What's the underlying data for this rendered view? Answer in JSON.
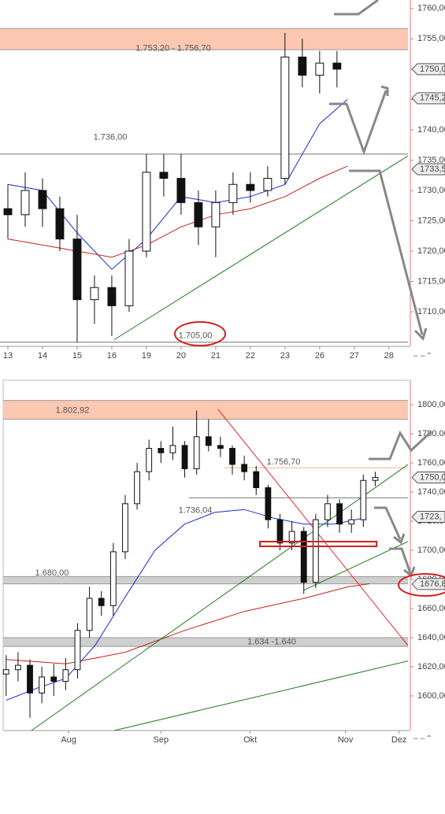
{
  "chart_data": [
    {
      "type": "candlestick",
      "x": [
        0,
        0.5,
        1,
        1.5,
        2,
        2.5,
        3,
        3.5,
        4,
        4.5,
        5,
        5.5,
        6,
        6.5,
        7,
        7.5,
        8,
        8.5,
        9,
        9.5
      ],
      "open": [
        1727,
        1726,
        1730,
        1727,
        1722,
        1712,
        1714,
        1711,
        1720,
        1733,
        1732,
        1728,
        1724,
        1728,
        1731,
        1730,
        1732,
        1752,
        1749,
        1751
      ],
      "high": [
        1731,
        1733,
        1732,
        1729,
        1726,
        1716,
        1716,
        1722,
        1736,
        1736,
        1736,
        1730,
        1730,
        1733,
        1733,
        1734,
        1756,
        1755,
        1753,
        1753
      ],
      "low": [
        1722,
        1724,
        1724,
        1720,
        1705,
        1708,
        1706,
        1710,
        1719,
        1729,
        1726,
        1721,
        1719,
        1726,
        1728,
        1729,
        1731,
        1747,
        1746,
        1747
      ],
      "close": [
        1726,
        1730,
        1727,
        1722,
        1712,
        1714,
        1711,
        1720,
        1733,
        1732,
        1728,
        1724,
        1728,
        1731,
        1730,
        1732,
        1752,
        1749,
        1751,
        1750
      ],
      "lines": [
        {
          "color": "#1a2bd6",
          "x": [
            0,
            1,
            2,
            3,
            4,
            5,
            6,
            7,
            8,
            9,
            9.8
          ],
          "values": [
            1731,
            1730,
            1723,
            1717,
            1722,
            1729,
            1728,
            1729,
            1731,
            1741,
            1745
          ]
        },
        {
          "color": "#c8201c",
          "x": [
            0,
            1,
            2,
            3,
            4,
            5,
            6,
            7,
            8,
            9,
            9.8
          ],
          "values": [
            1722,
            1721,
            1720,
            1719,
            1721,
            1724,
            1726,
            1727,
            1729,
            1732,
            1734
          ]
        },
        {
          "color": "#1f7a1f",
          "x": [
            3.07,
            11.55
          ],
          "values": [
            1705.4,
            1735.7
          ]
        }
      ],
      "bands": [
        {
          "range": [
            1753.2,
            1756.7
          ],
          "label": "1.753,20 - 1.756,70",
          "color": "#fcc8b2"
        }
      ],
      "levels": [
        {
          "value": 1736,
          "label": "1.736,00"
        },
        {
          "value": 1705,
          "label": "1.705,00"
        }
      ],
      "price_tags": [
        {
          "value": 1750,
          "label": "1750,0"
        },
        {
          "value": 1745.2,
          "label": "1745,2"
        },
        {
          "value": 1733.5,
          "label": "1733,5"
        }
      ],
      "xlim": [
        -0.227,
        11.55
      ],
      "xticks": [
        {
          "value": 0,
          "label": "13"
        },
        {
          "value": 1,
          "label": "14"
        },
        {
          "value": 2,
          "label": "15"
        },
        {
          "value": 3,
          "label": "16"
        },
        {
          "value": 4,
          "label": "19"
        },
        {
          "value": 5,
          "label": "20"
        },
        {
          "value": 6,
          "label": "21"
        },
        {
          "value": 7,
          "label": "22"
        },
        {
          "value": 8,
          "label": "23"
        },
        {
          "value": 9,
          "label": "26"
        },
        {
          "value": 10,
          "label": "27"
        },
        {
          "value": 11,
          "label": "28"
        }
      ],
      "ylim": [
        1704.3,
        1761.4
      ],
      "yticks": [
        {
          "value": 1760,
          "label": "1760,00"
        },
        {
          "value": 1755,
          "label": "1755,00"
        },
        {
          "value": 1750,
          "label": "1750,00"
        },
        {
          "value": 1745,
          "label": "1745,00"
        },
        {
          "value": 1740,
          "label": "1740,00"
        },
        {
          "value": 1735,
          "label": "1735,00"
        },
        {
          "value": 1730,
          "label": "1730,00"
        },
        {
          "value": 1725,
          "label": "1725,00"
        },
        {
          "value": 1720,
          "label": "1720,00"
        },
        {
          "value": 1715,
          "label": "1715,00"
        },
        {
          "value": 1710,
          "label": "1710,00"
        }
      ]
    },
    {
      "type": "candlestick",
      "x": [
        10,
        14,
        18,
        22,
        26,
        30,
        34,
        38,
        42,
        46,
        50,
        54,
        58,
        62,
        66,
        70,
        74,
        78,
        82,
        86,
        90,
        94,
        98,
        102,
        106,
        110,
        114,
        118,
        122,
        126,
        130,
        134
      ],
      "open": [
        1615,
        1618,
        1621,
        1602,
        1613,
        1610,
        1618,
        1645,
        1667,
        1662,
        1699,
        1732,
        1754,
        1770,
        1767,
        1772,
        1756,
        1778,
        1772,
        1770,
        1759,
        1754,
        1743,
        1721,
        1705,
        1713,
        1678,
        1721,
        1732,
        1718,
        1721,
        1748
      ],
      "high": [
        1628,
        1630,
        1625,
        1620,
        1622,
        1626,
        1650,
        1675,
        1672,
        1705,
        1738,
        1760,
        1776,
        1775,
        1785,
        1775,
        1796,
        1790,
        1778,
        1772,
        1765,
        1758,
        1745,
        1725,
        1720,
        1716,
        1725,
        1738,
        1735,
        1728,
        1752,
        1754
      ],
      "low": [
        1600,
        1610,
        1585,
        1595,
        1600,
        1604,
        1612,
        1640,
        1655,
        1655,
        1694,
        1728,
        1748,
        1760,
        1762,
        1750,
        1752,
        1768,
        1764,
        1752,
        1748,
        1738,
        1715,
        1700,
        1700,
        1670,
        1674,
        1716,
        1712,
        1712,
        1716,
        1744
      ],
      "close": [
        1618,
        1621,
        1602,
        1613,
        1610,
        1618,
        1645,
        1667,
        1662,
        1699,
        1732,
        1754,
        1770,
        1767,
        1772,
        1756,
        1778,
        1772,
        1770,
        1759,
        1754,
        1743,
        1721,
        1705,
        1713,
        1678,
        1721,
        1732,
        1718,
        1721,
        1748,
        1750
      ],
      "lines": [
        {
          "color": "#1a2bd6",
          "x": [
            10,
            20,
            30,
            40,
            50,
            60,
            70,
            80,
            90,
            100,
            110,
            120,
            130
          ],
          "values": [
            1597,
            1605,
            1612,
            1635,
            1668,
            1700,
            1718,
            1726,
            1728,
            1722,
            1718,
            1718,
            1722
          ]
        },
        {
          "color": "#c8201c",
          "x": [
            10,
            30,
            50,
            70,
            90,
            110,
            125,
            132
          ],
          "values": [
            1625,
            1622,
            1630,
            1645,
            1658,
            1667,
            1675,
            1677
          ]
        },
        {
          "color": "#1f7a1f",
          "x": [
            18.5,
            145
          ],
          "values": [
            1576.2,
            1758.9
          ]
        },
        {
          "color": "#1f7a1f",
          "x": [
            46.3,
            145
          ],
          "values": [
            1576.2,
            1624
          ]
        },
        {
          "color": "#1f7a1f",
          "x": [
            109.8,
            145
          ],
          "values": [
            1672.4,
            1706
          ]
        },
        {
          "color": "#e03030",
          "x": [
            81.2,
            145
          ],
          "values": [
            1796.8,
            1634.6
          ]
        }
      ],
      "bands": [
        {
          "range": [
            1790,
            1802.92
          ],
          "label": "1.802,92",
          "color": "#fcc8b2"
        },
        {
          "range": [
            1677,
            1682
          ],
          "label": "1.680,00",
          "color": "#cfcfcf"
        },
        {
          "range": [
            1634,
            1640
          ],
          "label": "1.634 -1.640",
          "color": "#cfcfcf"
        }
      ],
      "levels": [
        {
          "value": 1756.7,
          "label": "1.756,70"
        },
        {
          "value": 1736.04,
          "label": "1.736,04"
        }
      ],
      "price_tags": [
        {
          "value": 1750,
          "label": "1750,0"
        },
        {
          "value": 1723,
          "label": "1723,"
        },
        {
          "value": 1676.8,
          "label": "1676,8"
        }
      ],
      "xlim": [
        9,
        145
      ],
      "xticks": [
        {
          "value": 31,
          "label": "Aug"
        },
        {
          "value": 62,
          "label": "Sep"
        },
        {
          "value": 92,
          "label": "Okt"
        },
        {
          "value": 124,
          "label": "Nov"
        },
        {
          "value": 142,
          "label": "Dez"
        }
      ],
      "ylim": [
        1576.2,
        1816.8
      ],
      "yticks": [
        {
          "value": 1800,
          "label": "1800,00"
        },
        {
          "value": 1780,
          "label": "1780,00"
        },
        {
          "value": 1760,
          "label": "1760,00"
        },
        {
          "value": 1740,
          "label": "1740,00"
        },
        {
          "value": 1720,
          "label": "1720,00"
        },
        {
          "value": 1700,
          "label": "1700,00"
        },
        {
          "value": 1680,
          "label": "1680,00"
        },
        {
          "value": 1660,
          "label": "1660,00"
        },
        {
          "value": 1640,
          "label": "1640,00"
        },
        {
          "value": 1620,
          "label": "1620,00"
        },
        {
          "value": 1600,
          "label": "1600,00"
        }
      ]
    }
  ]
}
